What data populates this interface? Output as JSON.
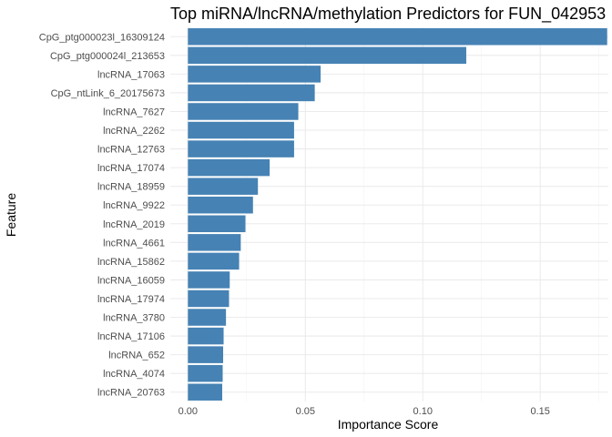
{
  "chart_data": {
    "type": "bar",
    "orientation": "horizontal",
    "title": "Top miRNA/lncRNA/methylation Predictors for FUN_042953",
    "xlabel": "Importance Score",
    "ylabel": "Feature",
    "xlim": [
      -0.0075,
      0.179
    ],
    "x_ticks": [
      0.0,
      0.05,
      0.1,
      0.15
    ],
    "x_tick_labels": [
      "0.00",
      "0.05",
      "0.10",
      "0.15"
    ],
    "grid": true,
    "bar_color": "#4682b4",
    "categories": [
      "CpG_ptg000023l_16309124",
      "CpG_ptg000024l_213653",
      "lncRNA_17063",
      "CpG_ntLink_6_20175673",
      "lncRNA_7627",
      "lncRNA_2262",
      "lncRNA_12763",
      "lncRNA_17074",
      "lncRNA_18959",
      "lncRNA_9922",
      "lncRNA_2019",
      "lncRNA_4661",
      "lncRNA_15862",
      "lncRNA_16059",
      "lncRNA_17974",
      "lncRNA_3780",
      "lncRNA_17106",
      "lncRNA_652",
      "lncRNA_4074",
      "lncRNA_20763"
    ],
    "values": [
      0.1785,
      0.1185,
      0.0565,
      0.054,
      0.047,
      0.0452,
      0.0452,
      0.0348,
      0.0298,
      0.0277,
      0.0245,
      0.0225,
      0.0218,
      0.0178,
      0.0175,
      0.0162,
      0.0152,
      0.015,
      0.0148,
      0.0146
    ]
  }
}
